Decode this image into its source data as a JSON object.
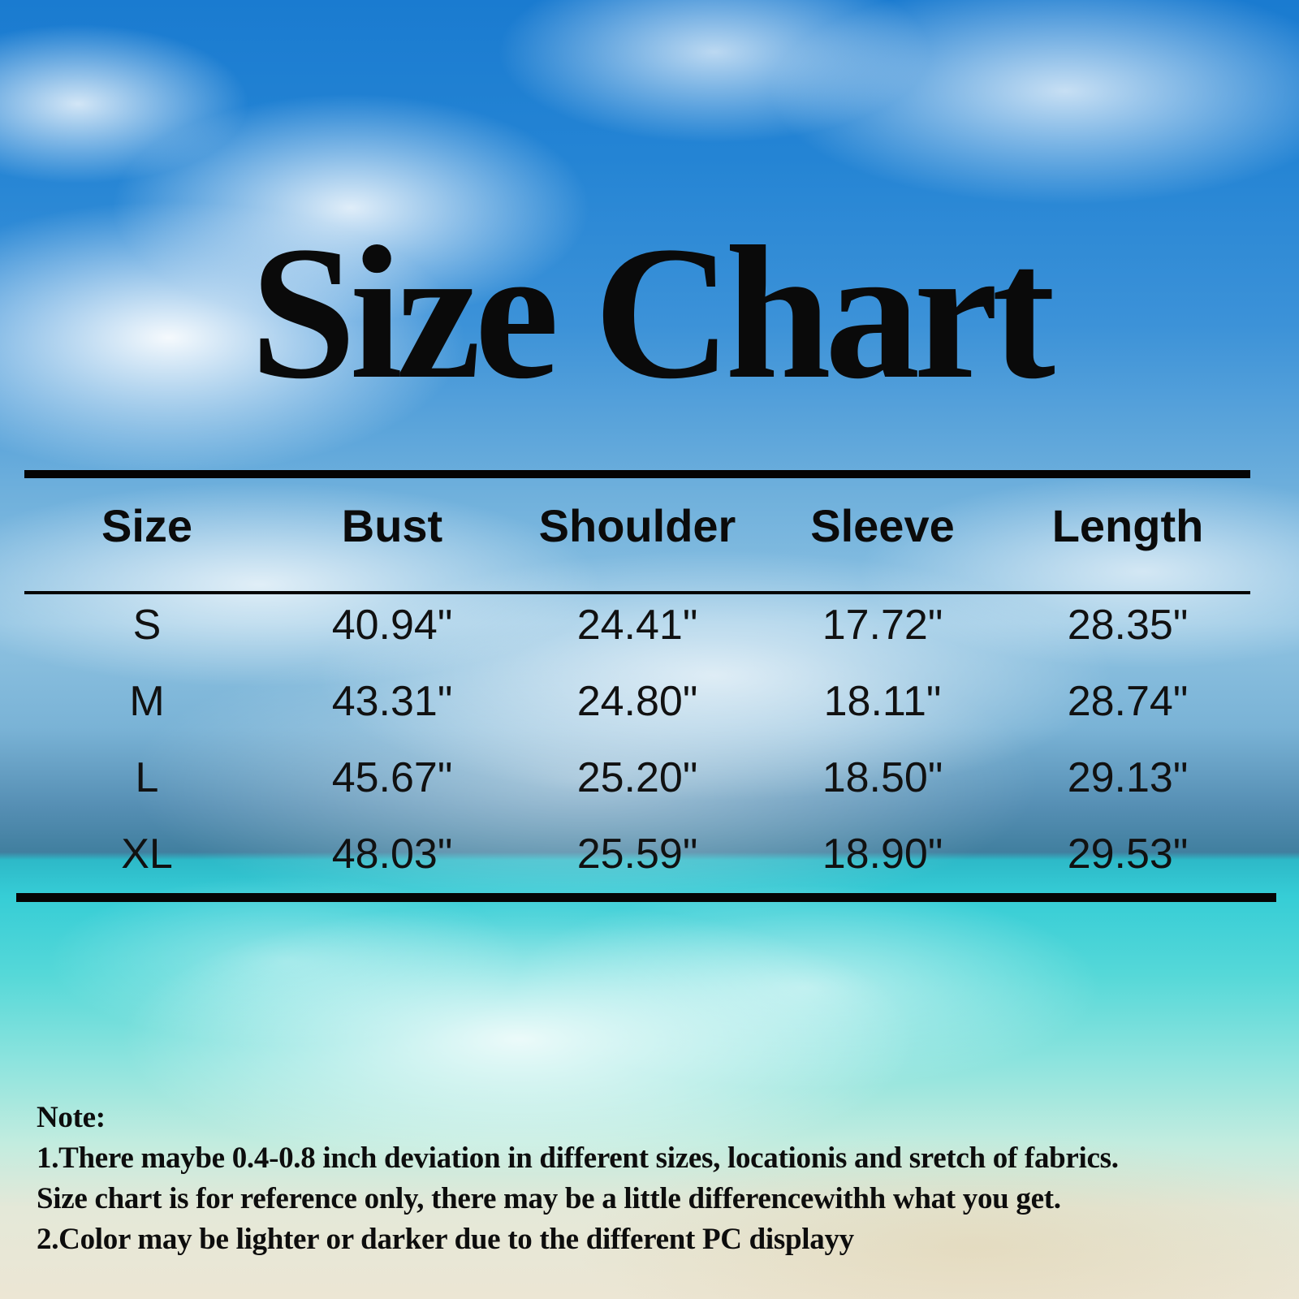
{
  "title": "Size Chart",
  "table": {
    "headers": [
      "Size",
      "Bust",
      "Shoulder",
      "Sleeve",
      "Length"
    ],
    "rows": [
      {
        "cells": [
          "S",
          "40.94\"",
          "24.41\"",
          "17.72\"",
          "28.35\""
        ]
      },
      {
        "cells": [
          "M",
          "43.31\"",
          "24.80\"",
          "18.11\"",
          "28.74\""
        ]
      },
      {
        "cells": [
          "L",
          "45.67\"",
          "25.20\"",
          "18.50\"",
          "29.13\""
        ]
      },
      {
        "cells": [
          "XL",
          "48.03\"",
          "25.59\"",
          "18.90\"",
          "29.53\""
        ]
      }
    ]
  },
  "note": {
    "label": "Note:",
    "lines": [
      "1.There maybe 0.4-0.8 inch deviation in different sizes, locationis and sretch of fabrics.",
      "Size chart is for reference only, there may be a little differencewithh what you get.",
      "2.Color may be lighter or darker due to the different PC displayy"
    ]
  },
  "chart_data": {
    "type": "table",
    "title": "Size Chart",
    "columns": [
      "Size",
      "Bust",
      "Shoulder",
      "Sleeve",
      "Length"
    ],
    "rows": [
      [
        "S",
        "40.94\"",
        "24.41\"",
        "17.72\"",
        "28.35\""
      ],
      [
        "M",
        "43.31\"",
        "24.80\"",
        "18.11\"",
        "28.74\""
      ],
      [
        "L",
        "45.67\"",
        "25.20\"",
        "18.50\"",
        "29.13\""
      ],
      [
        "XL",
        "48.03\"",
        "25.59\"",
        "18.90\"",
        "29.53\""
      ]
    ]
  },
  "colors": {
    "text": "#0a0a0a",
    "sky_blue": "#1a7bd0",
    "lagoon_turquoise": "#36cdd6",
    "sand": "#ece6d4"
  }
}
